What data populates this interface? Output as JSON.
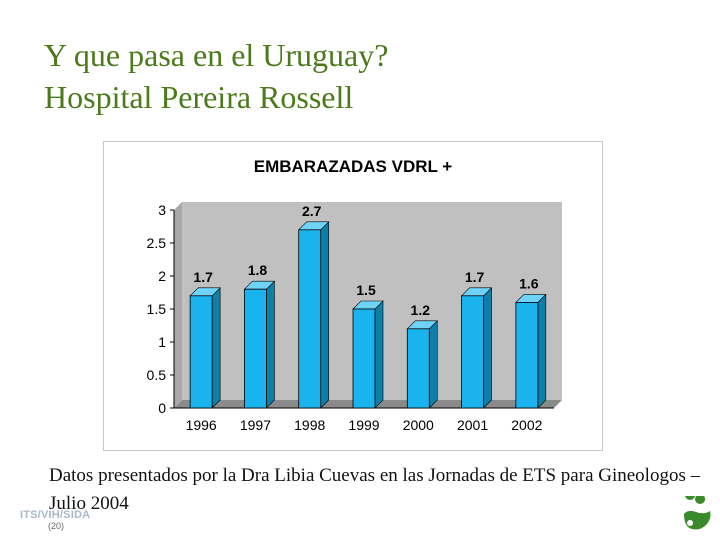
{
  "title": {
    "line1": "Y que pasa en el Uruguay?",
    "line2": "Hospital Pereira Rossell"
  },
  "caption": "Datos presentados por la Dra Libia Cuevas en las Jornadas de ETS para Gineologos – Julio 2004",
  "footer": {
    "label": "ITS/VIH/SIDA",
    "slide_number": "(20)"
  },
  "logo_icon": "organization-logo-icon",
  "colors": {
    "title": "#4a7a1a",
    "bar_front": "#19b4ee",
    "bar_side": "#0d7fa9",
    "bar_top": "#6fd3f7",
    "plot_wall": "#c0c0c0",
    "plot_floor": "#8a8a8a",
    "logo": "#3a8a2a"
  },
  "chart_data": {
    "type": "bar",
    "title": "EMBARAZADAS VDRL +",
    "categories": [
      "1996",
      "1997",
      "1998",
      "1999",
      "2000",
      "2001",
      "2002"
    ],
    "values": [
      1.7,
      1.8,
      2.7,
      1.5,
      1.2,
      1.7,
      1.6
    ],
    "data_labels": [
      "1.7",
      "1.8",
      "2.7",
      "1.5",
      "1.2",
      "1.7",
      "1.6"
    ],
    "ylim": [
      0,
      3
    ],
    "yticks": [
      "0",
      "0.5",
      "1",
      "1.5",
      "2",
      "2.5",
      "3"
    ],
    "xlabel": "",
    "ylabel": "",
    "grid": false,
    "style": "3d-column"
  }
}
